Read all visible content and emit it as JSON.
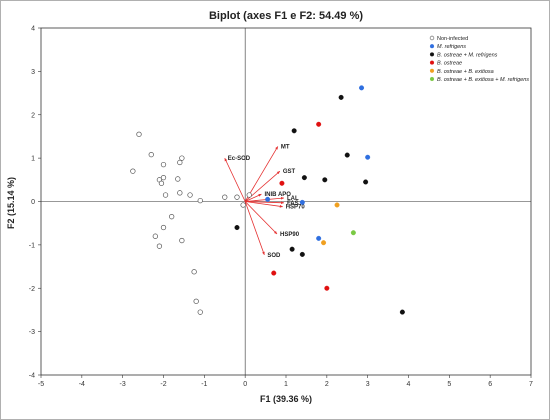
{
  "chart_data": {
    "type": "scatter",
    "title": "Biplot (axes F1 e F2: 54.49 %)",
    "xlabel": "F1 (39.36 %)",
    "ylabel": "F2 (15.14 %)",
    "xlim": [
      -5,
      7
    ],
    "ylim": [
      -4,
      4
    ],
    "xticks": [
      "-5",
      "-4",
      "-3",
      "-2",
      "-1",
      "0",
      "1",
      "2",
      "3",
      "4",
      "5",
      "6",
      "7"
    ],
    "yticks": [
      "-4",
      "-3",
      "-2",
      "-1",
      "0",
      "1",
      "2",
      "3",
      "4"
    ],
    "grid": false,
    "legend_position": "top-right",
    "series": [
      {
        "name": "Non-infected",
        "marker": "open-circle",
        "color": "#555555",
        "points": [
          [
            -2.6,
            1.55
          ],
          [
            -2.3,
            1.08
          ],
          [
            -2.75,
            0.7
          ],
          [
            -2.0,
            0.85
          ],
          [
            -1.55,
            1.0
          ],
          [
            -1.6,
            0.9
          ],
          [
            -2.1,
            0.5
          ],
          [
            -2.0,
            0.55
          ],
          [
            -2.05,
            0.42
          ],
          [
            -1.65,
            0.52
          ],
          [
            -1.95,
            0.15
          ],
          [
            -1.6,
            0.2
          ],
          [
            -1.35,
            0.15
          ],
          [
            -1.1,
            0.02
          ],
          [
            -0.5,
            0.1
          ],
          [
            -0.2,
            0.1
          ],
          [
            0.1,
            0.15
          ],
          [
            -0.05,
            -0.08
          ],
          [
            -1.8,
            -0.35
          ],
          [
            -2.0,
            -0.6
          ],
          [
            -2.2,
            -0.8
          ],
          [
            -2.1,
            -1.03
          ],
          [
            -1.55,
            -0.9
          ],
          [
            -1.25,
            -1.62
          ],
          [
            -1.2,
            -2.3
          ],
          [
            -1.1,
            -2.55
          ]
        ]
      },
      {
        "name": "M. refrigens",
        "marker": "circle",
        "color": "#2f6fe0",
        "points": [
          [
            2.85,
            2.62
          ],
          [
            3.0,
            1.02
          ],
          [
            0.55,
            0.05
          ],
          [
            1.4,
            -0.02
          ],
          [
            1.8,
            -0.85
          ]
        ]
      },
      {
        "name": "B. ostreae + M. refrigens",
        "marker": "circle",
        "color": "#111111",
        "points": [
          [
            2.35,
            2.4
          ],
          [
            1.2,
            1.63
          ],
          [
            2.5,
            1.07
          ],
          [
            1.45,
            0.55
          ],
          [
            1.95,
            0.5
          ],
          [
            2.95,
            0.45
          ],
          [
            -0.2,
            -0.6
          ],
          [
            1.15,
            -1.1
          ],
          [
            1.4,
            -1.22
          ],
          [
            3.85,
            -2.55
          ]
        ]
      },
      {
        "name": "B. ostreae",
        "marker": "circle",
        "color": "#e01010",
        "points": [
          [
            1.8,
            1.78
          ],
          [
            0.9,
            0.42
          ],
          [
            0.7,
            -1.65
          ],
          [
            2.0,
            -2.0
          ]
        ]
      },
      {
        "name": "B. ostreae + B. exitiosa",
        "marker": "circle",
        "color": "#f0a020",
        "points": [
          [
            2.25,
            -0.08
          ],
          [
            1.92,
            -0.95
          ]
        ]
      },
      {
        "name": "B. ostreae + B. exitiosa + M. refrigens",
        "marker": "circle",
        "color": "#7ac943",
        "points": [
          [
            2.65,
            -0.72
          ]
        ]
      }
    ],
    "variables": [
      {
        "label": "Ec-SOD",
        "x": -0.5,
        "y": 1.0
      },
      {
        "label": "MT",
        "x": 0.8,
        "y": 1.27
      },
      {
        "label": "GST",
        "x": 0.85,
        "y": 0.7
      },
      {
        "label": "INIB APO",
        "x": 0.4,
        "y": 0.17
      },
      {
        "label": "LAL",
        "x": 0.95,
        "y": 0.08
      },
      {
        "label": "FAS",
        "x": 0.95,
        "y": -0.03
      },
      {
        "label": "HSP70",
        "x": 0.92,
        "y": -0.12
      },
      {
        "label": "HSP90",
        "x": 0.78,
        "y": -0.75
      },
      {
        "label": "SOD",
        "x": 0.47,
        "y": -1.23
      }
    ]
  },
  "colors": {
    "vector": "#e53030",
    "axis": "#333333",
    "frame": "#b0b0b0"
  }
}
